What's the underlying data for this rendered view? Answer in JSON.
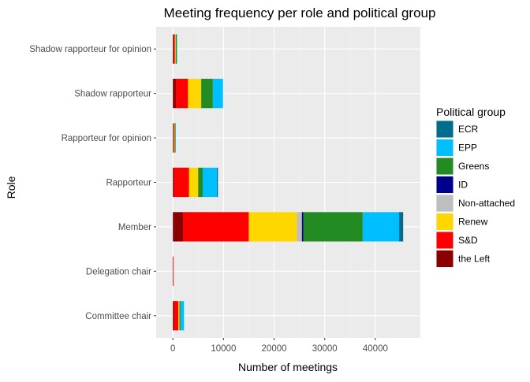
{
  "chart_data": {
    "type": "bar",
    "orientation": "horizontal",
    "stacked": true,
    "title": "Meeting frequency per role and political group",
    "xlabel": "Number of meetings",
    "ylabel": "Role",
    "xlim": [
      -3300,
      48900
    ],
    "xticks": [
      0,
      10000,
      20000,
      30000,
      40000
    ],
    "xtick_labels": [
      "0",
      "10000",
      "20000",
      "30000",
      "40000"
    ],
    "grid": true,
    "legend_position": "right",
    "legend_title": "Political group",
    "categories": [
      "Shadow rapporteur for opinion",
      "Shadow rapporteur",
      "Rapporteur for opinion",
      "Rapporteur",
      "Member",
      "Delegation chair",
      "Committee chair"
    ],
    "series": [
      {
        "name": "the Left",
        "color": "#8B0000",
        "values": [
          200,
          600,
          100,
          200,
          2000,
          0,
          200
        ]
      },
      {
        "name": "S&D",
        "color": "#FF0000",
        "values": [
          200,
          2400,
          150,
          3000,
          13000,
          150,
          900
        ]
      },
      {
        "name": "Renew",
        "color": "#FFD700",
        "values": [
          150,
          2600,
          100,
          1800,
          9500,
          0,
          200
        ]
      },
      {
        "name": "Non-attached",
        "color": "#BEBEBE",
        "values": [
          0,
          0,
          0,
          0,
          1000,
          0,
          0
        ]
      },
      {
        "name": "ID",
        "color": "#00008B",
        "values": [
          0,
          0,
          0,
          0,
          300,
          0,
          0
        ]
      },
      {
        "name": "Greens",
        "color": "#228B22",
        "values": [
          200,
          2300,
          150,
          900,
          11700,
          0,
          200
        ]
      },
      {
        "name": "EPP",
        "color": "#00BFFF",
        "values": [
          50,
          2000,
          50,
          2800,
          7200,
          0,
          700
        ]
      },
      {
        "name": "ECR",
        "color": "#006D8F",
        "values": [
          0,
          0,
          0,
          200,
          800,
          0,
          0
        ]
      }
    ],
    "legend_order": [
      "ECR",
      "EPP",
      "Greens",
      "ID",
      "Non-attached",
      "Renew",
      "S&D",
      "the Left"
    ]
  }
}
